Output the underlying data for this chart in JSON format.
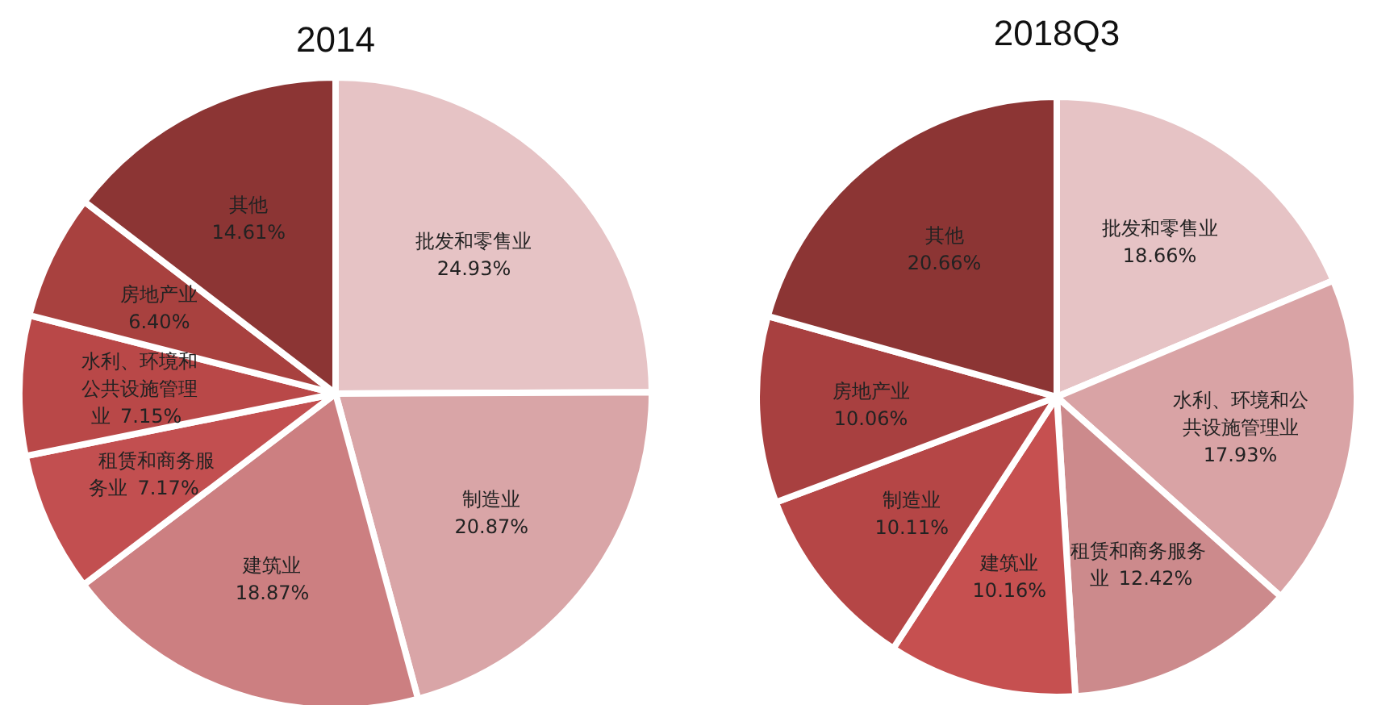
{
  "chart_data": [
    {
      "type": "pie",
      "title": "2014",
      "value_labels": [
        "24.93%",
        "20.87%",
        "18.87%",
        "7.17%",
        "7.15%",
        "6.40%",
        "14.61%"
      ],
      "categories": [
        "批发和零售业",
        "制造业",
        "建筑业",
        "租赁和商务服务业",
        "水利、环境和公共设施管理业",
        "房地产业",
        "其他"
      ],
      "values": [
        24.93,
        20.87,
        18.87,
        7.17,
        7.15,
        6.4,
        14.61
      ],
      "colors": [
        "#e6c3c5",
        "#d9a5a7",
        "#cc7f81",
        "#c24f50",
        "#b94848",
        "#a8413f",
        "#8c3534"
      ]
    },
    {
      "type": "pie",
      "title": "2018Q3",
      "value_labels": [
        "18.66%",
        "17.93%",
        "12.42%",
        "10.16%",
        "10.11%",
        "10.06%",
        "20.66%"
      ],
      "categories": [
        "批发和零售业",
        "水利、环境和公共设施管理业",
        "租赁和商务服务业",
        "建筑业",
        "制造业",
        "房地产业",
        "其他"
      ],
      "values": [
        18.66,
        17.93,
        12.42,
        10.16,
        10.11,
        10.06,
        20.66
      ],
      "colors": [
        "#e6c3c5",
        "#d9a3a5",
        "#cc8a8c",
        "#c65050",
        "#b54646",
        "#a84040",
        "#8c3534"
      ]
    }
  ]
}
